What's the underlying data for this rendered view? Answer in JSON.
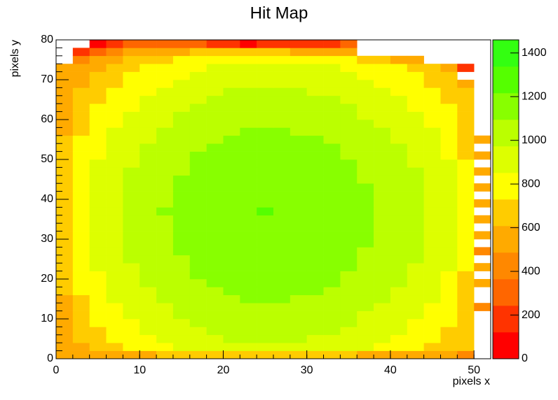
{
  "chart_data": {
    "type": "heatmap",
    "title": "Hit Map",
    "x_label": "pixels x",
    "y_label": "pixels y",
    "xlim": [
      0,
      52
    ],
    "ylim": [
      0,
      80
    ],
    "zlim": [
      0,
      1460
    ],
    "xticks": [
      0,
      10,
      20,
      30,
      40,
      50
    ],
    "yticks": [
      0,
      10,
      20,
      30,
      40,
      50,
      60,
      70,
      80
    ],
    "zticks": [
      0,
      200,
      400,
      600,
      800,
      1000,
      1200,
      1400
    ],
    "palette": [
      "#ff0000",
      "#ff3300",
      "#ff6600",
      "#ff8800",
      "#ffaa00",
      "#ffcc00",
      "#ffff00",
      "#ddff00",
      "#bbff00",
      "#88ff00",
      "#55ff00",
      "#33ff11"
    ],
    "z": [
      [
        520,
        540,
        560,
        580,
        600,
        600,
        610,
        620,
        620,
        630,
        630,
        630,
        630,
        630,
        630,
        620,
        620,
        610,
        600,
        590,
        580,
        560,
        540,
        500,
        400,
        null
      ],
      [
        530,
        580,
        660,
        720,
        770,
        810,
        850,
        880,
        910,
        930,
        950,
        960,
        970,
        960,
        950,
        940,
        920,
        900,
        870,
        840,
        810,
        770,
        720,
        660,
        630,
        null
      ],
      [
        550,
        610,
        690,
        750,
        800,
        840,
        880,
        910,
        940,
        960,
        980,
        990,
        1000,
        990,
        980,
        970,
        950,
        930,
        900,
        870,
        840,
        800,
        750,
        690,
        650,
        null
      ],
      [
        560,
        640,
        720,
        780,
        830,
        870,
        910,
        940,
        970,
        990,
        1010,
        1020,
        1030,
        1020,
        1010,
        1000,
        980,
        960,
        930,
        900,
        870,
        830,
        780,
        720,
        660,
        null
      ],
      [
        570,
        660,
        740,
        800,
        850,
        890,
        930,
        960,
        990,
        1010,
        1030,
        1040,
        1050,
        1040,
        1030,
        1020,
        1000,
        980,
        950,
        920,
        890,
        850,
        800,
        740,
        670,
        null
      ],
      [
        580,
        680,
        760,
        820,
        870,
        910,
        950,
        980,
        1010,
        1030,
        1050,
        1060,
        1070,
        1060,
        1050,
        1040,
        1020,
        1000,
        970,
        940,
        910,
        870,
        820,
        760,
        680,
        null
      ],
      [
        590,
        700,
        780,
        840,
        890,
        930,
        970,
        1000,
        1030,
        1050,
        1070,
        1080,
        1090,
        1080,
        1070,
        1060,
        1040,
        1020,
        990,
        960,
        930,
        890,
        840,
        780,
        690,
        480
      ],
      [
        600,
        720,
        800,
        860,
        910,
        950,
        990,
        1020,
        1050,
        1070,
        1090,
        1100,
        1110,
        1100,
        1090,
        1080,
        1060,
        1040,
        1010,
        980,
        950,
        910,
        860,
        800,
        700,
        null
      ],
      [
        610,
        740,
        820,
        880,
        930,
        970,
        1010,
        1040,
        1070,
        1090,
        1110,
        1120,
        1130,
        1120,
        1110,
        1100,
        1080,
        1060,
        1030,
        1000,
        970,
        930,
        880,
        820,
        710,
        null
      ],
      [
        620,
        760,
        840,
        900,
        950,
        990,
        1030,
        1060,
        1090,
        1110,
        1130,
        1140,
        1150,
        1140,
        1130,
        1120,
        1100,
        1080,
        1050,
        1020,
        990,
        950,
        900,
        840,
        720,
        520
      ],
      [
        630,
        770,
        850,
        910,
        960,
        1000,
        1040,
        1070,
        1100,
        1120,
        1140,
        1150,
        1160,
        1150,
        1140,
        1130,
        1110,
        1090,
        1060,
        1030,
        1000,
        960,
        910,
        850,
        720,
        null
      ],
      [
        630,
        780,
        860,
        920,
        970,
        1010,
        1050,
        1080,
        1110,
        1130,
        1150,
        1160,
        1170,
        1160,
        1150,
        1140,
        1120,
        1100,
        1070,
        1040,
        1010,
        970,
        920,
        860,
        730,
        500
      ],
      [
        640,
        790,
        870,
        930,
        980,
        1020,
        1060,
        1090,
        1120,
        1140,
        1160,
        1170,
        1180,
        1170,
        1160,
        1150,
        1130,
        1110,
        1080,
        1050,
        1020,
        980,
        930,
        870,
        740,
        null
      ],
      [
        640,
        800,
        880,
        940,
        990,
        1030,
        1070,
        1100,
        1130,
        1150,
        1170,
        1180,
        1190,
        1180,
        1170,
        1160,
        1140,
        1120,
        1090,
        1060,
        1030,
        990,
        940,
        880,
        740,
        480
      ],
      [
        640,
        810,
        890,
        950,
        1000,
        1040,
        1080,
        1110,
        1140,
        1160,
        1180,
        1190,
        1200,
        1190,
        1180,
        1170,
        1150,
        1130,
        1100,
        1070,
        1040,
        1000,
        950,
        890,
        740,
        null
      ],
      [
        650,
        820,
        900,
        960,
        1010,
        1050,
        1090,
        1120,
        1150,
        1170,
        1190,
        1200,
        1210,
        1200,
        1190,
        1180,
        1160,
        1140,
        1110,
        1080,
        1050,
        1010,
        960,
        900,
        750,
        540
      ],
      [
        650,
        810,
        900,
        950,
        1010,
        1040,
        1090,
        1110,
        1150,
        1160,
        1190,
        1190,
        1210,
        1190,
        1190,
        1170,
        1160,
        1130,
        1110,
        1070,
        1050,
        1000,
        960,
        890,
        750,
        null
      ],
      [
        650,
        820,
        900,
        960,
        1010,
        1050,
        1090,
        1120,
        1150,
        1170,
        1190,
        1200,
        1210,
        1200,
        1190,
        1180,
        1160,
        1140,
        1110,
        1080,
        1050,
        1010,
        960,
        900,
        750,
        500
      ],
      [
        660,
        830,
        910,
        970,
        1020,
        1060,
        1100,
        1130,
        1160,
        1180,
        1200,
        1210,
        1220,
        1210,
        1200,
        1190,
        1170,
        1150,
        1120,
        1090,
        1060,
        1020,
        970,
        910,
        760,
        null
      ],
      [
        650,
        820,
        900,
        960,
        1010,
        1050,
        1090,
        1120,
        1150,
        1170,
        1190,
        1200,
        1210,
        1200,
        1190,
        1180,
        1160,
        1140,
        1110,
        1080,
        1050,
        1010,
        960,
        900,
        750,
        520
      ],
      [
        650,
        810,
        890,
        950,
        1000,
        1040,
        1080,
        1110,
        1140,
        1160,
        1180,
        1190,
        1200,
        1190,
        1180,
        1170,
        1150,
        1130,
        1100,
        1070,
        1040,
        1000,
        950,
        890,
        740,
        null
      ],
      [
        640,
        810,
        890,
        950,
        1000,
        1040,
        1080,
        1110,
        1140,
        1160,
        1180,
        1190,
        1200,
        1190,
        1180,
        1170,
        1150,
        1130,
        1100,
        1070,
        1040,
        1000,
        950,
        890,
        740,
        490
      ],
      [
        640,
        800,
        880,
        940,
        990,
        1030,
        1070,
        1100,
        1130,
        1150,
        1170,
        1180,
        1190,
        1180,
        1170,
        1160,
        1140,
        1120,
        1090,
        1060,
        1030,
        990,
        940,
        880,
        740,
        null
      ],
      [
        640,
        790,
        870,
        930,
        980,
        1020,
        1060,
        1090,
        1120,
        1140,
        1160,
        1170,
        1180,
        1170,
        1160,
        1150,
        1130,
        1110,
        1080,
        1050,
        1020,
        980,
        930,
        870,
        740,
        520
      ],
      [
        630,
        780,
        860,
        920,
        970,
        1010,
        1050,
        1080,
        1110,
        1130,
        1150,
        1160,
        1170,
        1160,
        1150,
        1140,
        1120,
        1100,
        1070,
        1040,
        1010,
        970,
        920,
        860,
        730,
        null
      ],
      [
        630,
        770,
        850,
        910,
        960,
        1000,
        1040,
        1070,
        1100,
        1120,
        1140,
        1150,
        1160,
        1150,
        1140,
        1130,
        1110,
        1090,
        1060,
        1030,
        1000,
        960,
        910,
        850,
        720,
        500
      ],
      [
        620,
        760,
        840,
        900,
        950,
        990,
        1030,
        1060,
        1090,
        1110,
        1130,
        1140,
        1150,
        1140,
        1130,
        1120,
        1100,
        1080,
        1050,
        1020,
        990,
        950,
        900,
        840,
        720,
        null
      ],
      [
        610,
        740,
        820,
        880,
        930,
        970,
        1010,
        1040,
        1070,
        1090,
        1110,
        1120,
        1130,
        1120,
        1110,
        1100,
        1080,
        1060,
        1030,
        1000,
        970,
        930,
        880,
        820,
        710,
        510
      ],
      [
        600,
        720,
        800,
        860,
        910,
        950,
        990,
        1020,
        1050,
        1070,
        1090,
        1100,
        1110,
        1100,
        1090,
        1080,
        1060,
        1040,
        1010,
        980,
        950,
        910,
        860,
        800,
        700,
        null
      ],
      [
        590,
        700,
        780,
        840,
        890,
        930,
        970,
        1000,
        1030,
        1050,
        1070,
        1080,
        1090,
        1080,
        1070,
        1060,
        1040,
        1020,
        990,
        960,
        930,
        890,
        840,
        780,
        690,
        null
      ],
      [
        580,
        680,
        760,
        820,
        870,
        910,
        950,
        980,
        1010,
        1030,
        1050,
        1060,
        1070,
        1060,
        1050,
        1040,
        1020,
        1000,
        970,
        940,
        910,
        870,
        820,
        760,
        680,
        null
      ],
      [
        570,
        660,
        740,
        800,
        850,
        890,
        930,
        960,
        990,
        1010,
        1030,
        1040,
        1050,
        1040,
        1030,
        1020,
        1000,
        980,
        950,
        920,
        890,
        850,
        800,
        740,
        670,
        null
      ],
      [
        560,
        640,
        720,
        780,
        830,
        870,
        910,
        940,
        970,
        990,
        1010,
        1020,
        1030,
        1020,
        1010,
        1000,
        980,
        960,
        930,
        900,
        870,
        830,
        780,
        720,
        660,
        null
      ],
      [
        550,
        610,
        690,
        750,
        800,
        840,
        880,
        910,
        940,
        960,
        980,
        990,
        1000,
        990,
        980,
        970,
        950,
        930,
        900,
        870,
        840,
        800,
        750,
        690,
        650,
        null
      ],
      [
        530,
        580,
        660,
        720,
        770,
        810,
        850,
        880,
        910,
        930,
        950,
        960,
        970,
        960,
        950,
        940,
        920,
        900,
        870,
        840,
        810,
        770,
        720,
        660,
        600,
        null
      ],
      [
        520,
        550,
        630,
        690,
        740,
        780,
        820,
        850,
        880,
        900,
        920,
        930,
        940,
        930,
        920,
        910,
        890,
        870,
        840,
        810,
        780,
        740,
        690,
        630,
        null,
        null
      ],
      [
        500,
        520,
        600,
        660,
        710,
        750,
        790,
        820,
        850,
        870,
        890,
        900,
        910,
        900,
        890,
        880,
        860,
        840,
        810,
        780,
        750,
        710,
        660,
        600,
        150,
        null
      ],
      [
        null,
        420,
        500,
        570,
        620,
        660,
        700,
        730,
        760,
        780,
        800,
        810,
        820,
        810,
        800,
        790,
        770,
        740,
        710,
        660,
        600,
        520,
        null,
        null,
        null,
        null
      ],
      [
        null,
        150,
        300,
        450,
        500,
        520,
        560,
        600,
        620,
        630,
        640,
        650,
        640,
        620,
        600,
        580,
        560,
        500,
        null,
        null,
        null,
        null,
        null,
        null,
        null,
        null
      ],
      [
        null,
        null,
        120,
        180,
        250,
        260,
        300,
        330,
        280,
        150,
        200,
        120,
        160,
        140,
        150,
        200,
        140,
        250,
        null,
        null,
        null,
        null,
        null,
        null,
        null,
        null
      ]
    ]
  }
}
